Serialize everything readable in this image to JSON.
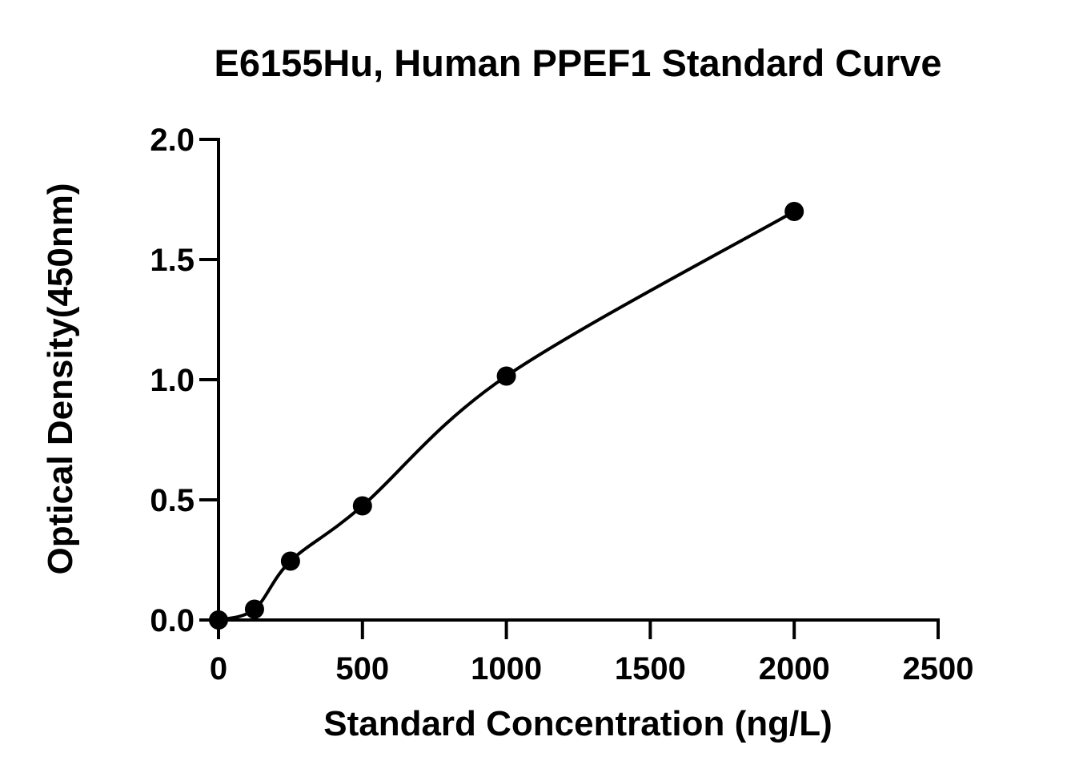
{
  "chart_data": {
    "type": "scatter",
    "title": "E6155Hu, Human PPEF1 Standard Curve",
    "xlabel": "Standard Concentration (ng/L)",
    "ylabel": "Optical Density(450nm)",
    "xlim": [
      0,
      2500
    ],
    "ylim": [
      0,
      2.0
    ],
    "x_ticks": [
      0,
      500,
      1000,
      1500,
      2000,
      2500
    ],
    "x_tick_labels": [
      "0",
      "500",
      "1000",
      "1500",
      "2000",
      "2500"
    ],
    "y_ticks": [
      0.0,
      0.5,
      1.0,
      1.5,
      2.0
    ],
    "y_tick_labels": [
      "0.0",
      "0.5",
      "1.0",
      "1.5",
      "2.0"
    ],
    "grid": false,
    "legend": "none",
    "series": [
      {
        "x": [
          0,
          125,
          250,
          500,
          1000,
          2000
        ],
        "y": [
          0.0,
          0.045,
          0.245,
          0.475,
          1.015,
          1.7
        ],
        "marker": "circle",
        "color": "#000000",
        "fit": "smooth curve"
      }
    ]
  }
}
